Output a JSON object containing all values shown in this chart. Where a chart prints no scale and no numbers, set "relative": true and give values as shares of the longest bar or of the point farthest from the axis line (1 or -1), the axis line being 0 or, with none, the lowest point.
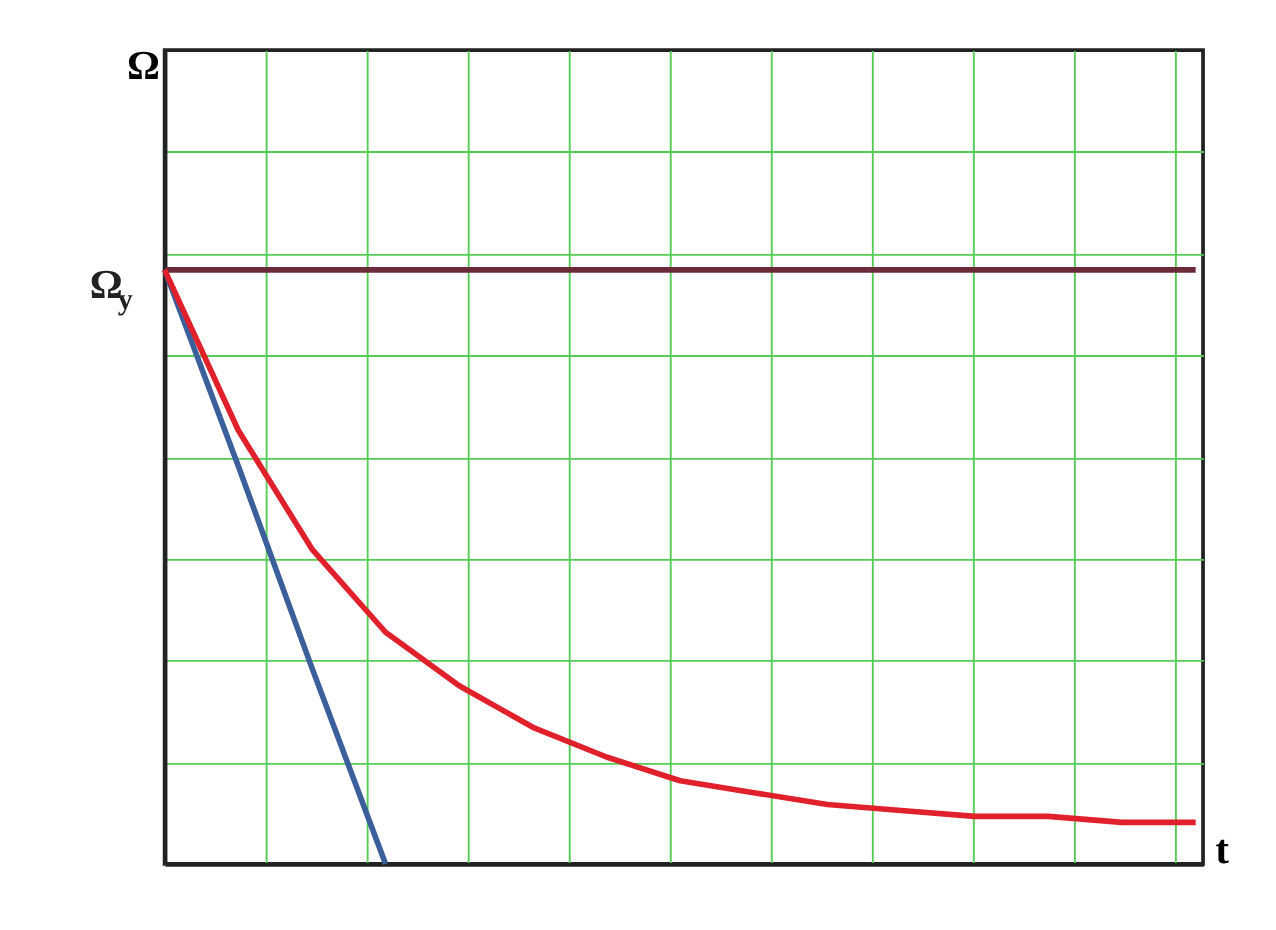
{
  "chart_data": {
    "type": "line",
    "relative": true,
    "xlabel": "t",
    "ylabel": "Ω",
    "categories": [
      null,
      null,
      null,
      null,
      null,
      null,
      null,
      null,
      null,
      null,
      null,
      null,
      null,
      null,
      null
    ],
    "series": [
      {
        "color": "#6b2a3a",
        "values": [
          1,
          1,
          1,
          1,
          1,
          1,
          1,
          1,
          1,
          1,
          1,
          1,
          1,
          1,
          1
        ]
      },
      {
        "color": "#3a5f9a",
        "values": [
          1,
          0.67,
          0.33,
          0,
          null,
          null,
          null,
          null,
          null,
          null,
          null,
          null,
          null,
          null,
          null
        ]
      },
      {
        "color": "#e0202a",
        "values": [
          1,
          0.73,
          0.53,
          0.39,
          0.3,
          0.23,
          0.18,
          0.14,
          0.12,
          0.1,
          0.09,
          0.08,
          0.08,
          0.07,
          0.07
        ]
      }
    ],
    "annotations": [
      "Ω$_{y}$"
    ],
    "grid": true,
    "tick_labels": false,
    "legend": false,
    "marker": "none",
    "line_style": "solid"
  }
}
